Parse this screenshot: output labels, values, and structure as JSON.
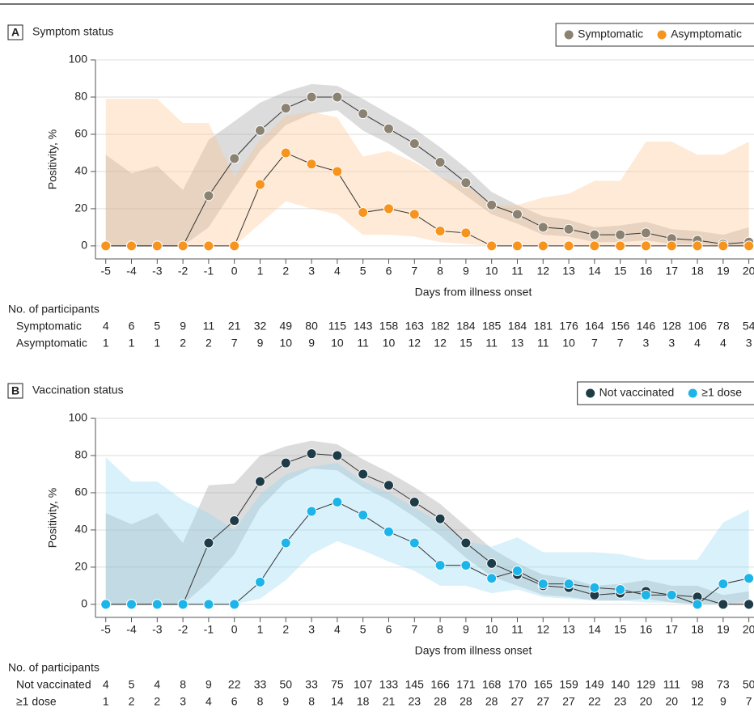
{
  "chart_data": [
    {
      "type": "line",
      "panel": "A",
      "title": "Symptom status",
      "xlabel": "Days from illness onset",
      "ylabel": "Positivity, %",
      "x": [
        -5,
        -4,
        -3,
        -2,
        -1,
        0,
        1,
        2,
        3,
        4,
        5,
        6,
        7,
        8,
        9,
        10,
        11,
        12,
        13,
        14,
        15,
        16,
        17,
        18,
        19,
        20
      ],
      "xlim": [
        -5.4,
        20.2
      ],
      "xticks": [
        -5,
        -4,
        -3,
        -2,
        -1,
        0,
        1,
        2,
        3,
        4,
        5,
        6,
        7,
        8,
        9,
        10,
        11,
        12,
        13,
        14,
        15,
        16,
        17,
        18,
        19,
        20
      ],
      "ylim": [
        -7,
        100
      ],
      "yticks": [
        0,
        20,
        40,
        60,
        80,
        100
      ],
      "grid": true,
      "series": [
        {
          "name": "Symptomatic",
          "color": "#8b8272",
          "band_color": "#9a9a9a",
          "values": [
            0,
            0,
            0,
            0,
            27,
            47,
            62,
            74,
            80,
            80,
            71,
            63,
            55,
            45,
            34,
            22,
            17,
            10,
            9,
            6,
            6,
            7,
            4,
            3,
            1,
            2
          ],
          "ci_lower": [
            0,
            0,
            0,
            0,
            10,
            31,
            51,
            65,
            71,
            73,
            62,
            55,
            46,
            37,
            27,
            17,
            12,
            6,
            5,
            2,
            2,
            3,
            1,
            1,
            0,
            0
          ],
          "ci_upper": [
            49,
            39,
            43,
            30,
            57,
            67,
            77,
            83,
            87,
            86,
            79,
            71,
            63,
            53,
            42,
            29,
            22,
            16,
            14,
            10,
            11,
            13,
            9,
            8,
            6,
            10
          ]
        },
        {
          "name": "Asymptomatic",
          "color": "#f7941d",
          "band_color": "#fbc48a",
          "values": [
            0,
            0,
            0,
            0,
            0,
            0,
            33,
            50,
            44,
            40,
            18,
            20,
            17,
            8,
            7,
            0,
            0,
            0,
            0,
            0,
            0,
            0,
            0,
            0,
            0,
            0
          ],
          "ci_lower": [
            0,
            0,
            0,
            0,
            0,
            0,
            12,
            24,
            20,
            17,
            6,
            6,
            5,
            2,
            1,
            0,
            0,
            0,
            0,
            0,
            0,
            0,
            0,
            0,
            0,
            0
          ],
          "ci_upper": [
            79,
            79,
            79,
            66,
            66,
            37,
            57,
            70,
            72,
            69,
            48,
            51,
            45,
            37,
            33,
            22,
            22,
            26,
            28,
            35,
            35,
            56,
            56,
            49,
            49,
            56
          ]
        }
      ],
      "participants": {
        "title": "No. of participants",
        "rows": [
          {
            "label": "Symptomatic",
            "values": [
              4,
              6,
              5,
              9,
              11,
              21,
              32,
              49,
              80,
              115,
              143,
              158,
              163,
              182,
              184,
              185,
              184,
              181,
              176,
              164,
              156,
              146,
              128,
              106,
              78,
              54
            ]
          },
          {
            "label": "Asymptomatic",
            "values": [
              1,
              1,
              1,
              2,
              2,
              7,
              9,
              10,
              9,
              10,
              11,
              10,
              12,
              12,
              15,
              11,
              13,
              11,
              10,
              7,
              7,
              3,
              3,
              4,
              4,
              3
            ]
          }
        ]
      }
    },
    {
      "type": "line",
      "panel": "B",
      "title": "Vaccination status",
      "xlabel": "Days from illness onset",
      "ylabel": "Positivity, %",
      "x": [
        -5,
        -4,
        -3,
        -2,
        -1,
        0,
        1,
        2,
        3,
        4,
        5,
        6,
        7,
        8,
        9,
        10,
        11,
        12,
        13,
        14,
        15,
        16,
        17,
        18,
        19,
        20
      ],
      "xlim": [
        -5.4,
        20.2
      ],
      "xticks": [
        -5,
        -4,
        -3,
        -2,
        -1,
        0,
        1,
        2,
        3,
        4,
        5,
        6,
        7,
        8,
        9,
        10,
        11,
        12,
        13,
        14,
        15,
        16,
        17,
        18,
        19,
        20
      ],
      "ylim": [
        -7,
        100
      ],
      "yticks": [
        0,
        20,
        40,
        60,
        80,
        100
      ],
      "grid": true,
      "series": [
        {
          "name": "Not vaccinated",
          "color": "#1e3b48",
          "band_color": "#9a9a9a",
          "values": [
            0,
            0,
            0,
            0,
            33,
            45,
            66,
            76,
            81,
            80,
            70,
            64,
            55,
            46,
            33,
            22,
            16,
            10,
            9,
            5,
            6,
            7,
            5,
            4,
            0,
            0
          ],
          "ci_lower": [
            0,
            0,
            0,
            0,
            12,
            27,
            52,
            66,
            73,
            72,
            63,
            56,
            47,
            37,
            25,
            15,
            10,
            5,
            4,
            2,
            2,
            3,
            1,
            0,
            0,
            0
          ],
          "ci_upper": [
            49,
            43,
            49,
            33,
            64,
            65,
            80,
            85,
            88,
            86,
            78,
            71,
            63,
            54,
            42,
            30,
            22,
            16,
            14,
            10,
            11,
            13,
            10,
            10,
            5,
            7
          ]
        },
        {
          "name": "≥1 dose",
          "color": "#1cb5ea",
          "band_color": "#8fd6f2",
          "values": [
            0,
            0,
            0,
            0,
            0,
            0,
            12,
            33,
            50,
            55,
            48,
            39,
            33,
            21,
            21,
            14,
            18,
            11,
            11,
            9,
            8,
            5,
            5,
            0,
            11,
            14
          ],
          "ci_lower": [
            0,
            0,
            0,
            0,
            0,
            0,
            3,
            13,
            27,
            34,
            29,
            23,
            18,
            10,
            10,
            6,
            8,
            4,
            3,
            2,
            2,
            1,
            1,
            0,
            0,
            2
          ],
          "ci_upper": [
            79,
            66,
            66,
            56,
            49,
            40,
            59,
            70,
            74,
            76,
            66,
            60,
            52,
            44,
            34,
            31,
            36,
            28,
            28,
            28,
            27,
            24,
            24,
            24,
            44,
            51
          ]
        }
      ],
      "participants": {
        "title": "No. of participants",
        "rows": [
          {
            "label": "Not vaccinated",
            "values": [
              4,
              5,
              4,
              8,
              9,
              22,
              33,
              50,
              33,
              75,
              107,
              133,
              145,
              166,
              171,
              168,
              170,
              165,
              159,
              149,
              140,
              129,
              111,
              98,
              73,
              50
            ]
          },
          {
            "label": "≥1 dose",
            "values": [
              1,
              2,
              2,
              3,
              4,
              6,
              8,
              9,
              8,
              14,
              18,
              21,
              23,
              28,
              28,
              28,
              27,
              27,
              27,
              22,
              23,
              20,
              20,
              12,
              9,
              7
            ]
          }
        ]
      }
    }
  ]
}
